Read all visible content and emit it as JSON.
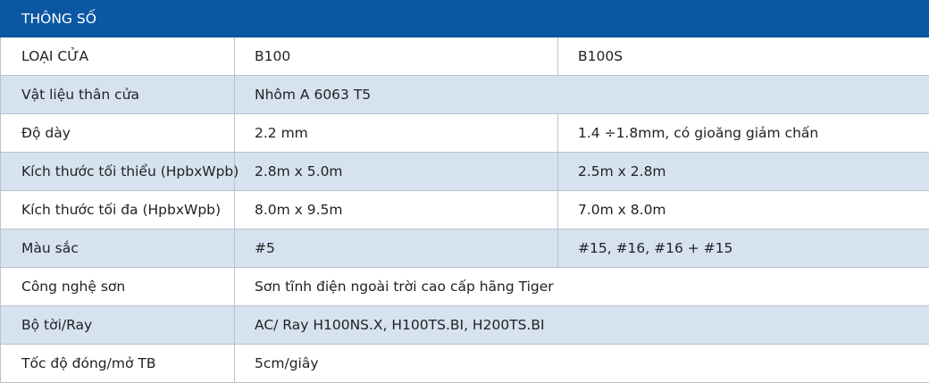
{
  "title": "THÔNG SỐ",
  "colors": {
    "header_bg": "#0b57a4",
    "header_text": "#ffffff",
    "row_alt_bg": "#d6e2f0",
    "border": "#b9c3cf"
  },
  "rows": [
    {
      "label": "LOẠI CỬA",
      "values": [
        "B100",
        "B100S"
      ]
    },
    {
      "label": "Vật liệu thân cửa",
      "values": [
        "Nhôm A 6063 T5"
      ]
    },
    {
      "label": "Độ dày",
      "values": [
        "2.2 mm",
        "1.4 ÷1.8mm, có gioăng giảm chấn"
      ]
    },
    {
      "label": "Kích thước tối thiểu (HpbxWpb)",
      "values": [
        "2.8m x 5.0m",
        "2.5m x 2.8m"
      ]
    },
    {
      "label": "Kích thước tối đa (HpbxWpb)",
      "values": [
        "8.0m x 9.5m",
        "7.0m x 8.0m"
      ]
    },
    {
      "label": "Màu sắc",
      "values": [
        "#5",
        "#15, #16, #16 + #15"
      ]
    },
    {
      "label": "Công nghệ sơn",
      "values": [
        "Sơn tĩnh điện ngoài trời cao cấp hãng Tiger"
      ]
    },
    {
      "label": "Bộ tời/Ray",
      "values": [
        "AC/ Ray H100NS.X, H100TS.BI, H200TS.BI"
      ]
    },
    {
      "label": "Tốc độ đóng/mở TB",
      "values": [
        "5cm/giây"
      ]
    }
  ]
}
